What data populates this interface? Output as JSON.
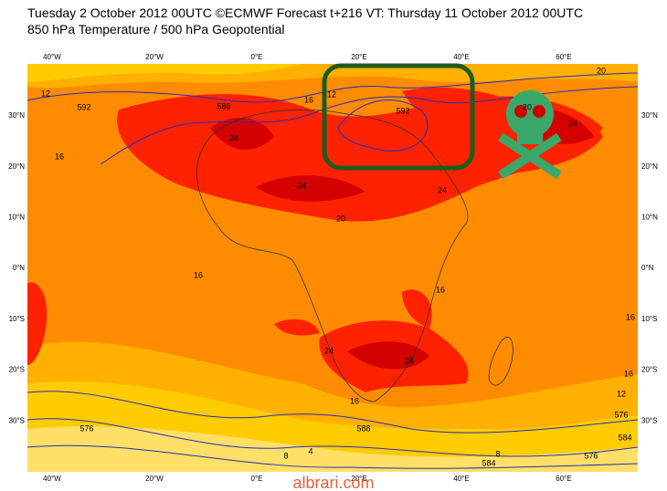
{
  "header": {
    "line1": "Tuesday 2 October 2012 00UTC ©ECMWF Forecast t+216 VT: Thursday 11 October 2012 00UTC",
    "line2": "850 hPa Temperature / 500 hPa Geopotential"
  },
  "longitude_labels": [
    "40°W",
    "20°W",
    "0°E",
    "20°E",
    "40°E",
    "60°E"
  ],
  "latitude_labels": [
    "30°N",
    "20°N",
    "10°N",
    "0°N",
    "10°S",
    "20°S",
    "30°S"
  ],
  "contour_labels": [
    "12",
    "16",
    "592",
    "24",
    "24",
    "24",
    "20",
    "16",
    "24",
    "24",
    "16",
    "16",
    "20",
    "20",
    "24",
    "16",
    "12",
    "576",
    "584",
    "16",
    "588",
    "576",
    "588",
    "584",
    "576",
    "4",
    "8",
    "8",
    "12",
    "16",
    "592"
  ],
  "watermark": "albrari.com"
}
